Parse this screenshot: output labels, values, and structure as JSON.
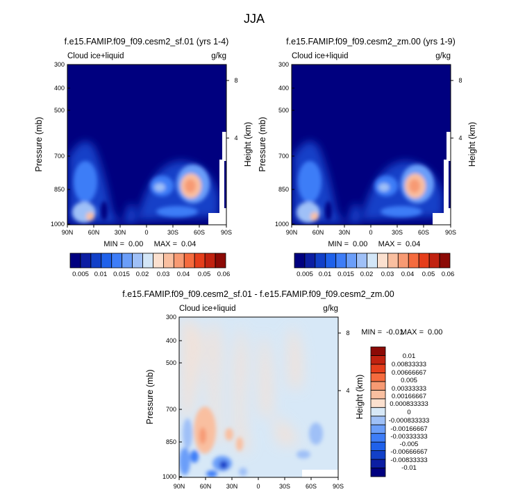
{
  "figure": {
    "title": "JJA"
  },
  "panels": [
    {
      "id": "a",
      "title": "f.e15.FAMIP.f09_f09.cesm2_sf.01 (yrs 1-4)",
      "left_label": "Cloud ice+liquid",
      "right_label": "g/kg",
      "stats": {
        "min_label": "MIN =",
        "min_value": "0.00",
        "max_label": "MAX =",
        "max_value": "0.04"
      }
    },
    {
      "id": "b",
      "title": "f.e15.FAMIP.f09_f09.cesm2_zm.00 (yrs 1-9)",
      "left_label": "Cloud ice+liquid",
      "right_label": "g/kg",
      "stats": {
        "min_label": "MIN =",
        "min_value": "0.00",
        "max_label": "MAX =",
        "max_value": "0.04"
      }
    },
    {
      "id": "diff",
      "title": "f.e15.FAMIP.f09_f09.cesm2_sf.01 - f.e15.FAMIP.f09_f09.cesm2_zm.00",
      "left_label": "Cloud ice+liquid",
      "right_label": "g/kg",
      "stats": {
        "min_label": "MIN =",
        "min_value": "-0.01",
        "max_label": "MAX =",
        "max_value": "0.00"
      }
    }
  ],
  "colors": {
    "abs_scale": [
      "#00007f",
      "#0c1ea2",
      "#1240c8",
      "#1f61ea",
      "#3e7df7",
      "#6b9ef9",
      "#9fc0f7",
      "#d3e6f7",
      "#fbe0cf",
      "#f9bfa0",
      "#f79a73",
      "#f56b3e",
      "#e53e1b",
      "#c12210",
      "#8c0a06"
    ],
    "diff_scale": [
      "#00007f",
      "#0c1ea2",
      "#1240c8",
      "#1f61ea",
      "#3e7df7",
      "#6b9ef9",
      "#9fc0f7",
      "#d7e8f7",
      "#fbe0cf",
      "#f9bfa0",
      "#f79a73",
      "#f56b3e",
      "#e53e1b",
      "#c12210",
      "#8c0a06"
    ],
    "missing": "#ffffff"
  },
  "chart_data": [
    {
      "type": "heatmap",
      "panel": "a",
      "title": "f.e15.FAMIP.f09_f09.cesm2_sf.01 (yrs 1-4)",
      "xlabel": "",
      "ylabel": "Pressure (mb)",
      "y2label": "Height (km)",
      "x_ticks": [
        "90N",
        "60N",
        "30N",
        "0",
        "30S",
        "60S",
        "90S"
      ],
      "y_ticks": [
        "300",
        "400",
        "500",
        "700",
        "850",
        "1000"
      ],
      "y2_ticks": [
        "8",
        "4"
      ],
      "x_range": [
        90,
        -90
      ],
      "y_range": [
        300,
        1000
      ],
      "colorbar_levels": [
        "0.005",
        "0.01",
        "0.015",
        "0.02",
        "0.03",
        "0.04",
        "0.05",
        "0.06"
      ],
      "features": [
        {
          "description": "low-level cloud maximum near 55S",
          "lat": -52,
          "p": 850,
          "value": 0.035
        },
        {
          "description": "Northern high-latitude boundary layer cloud",
          "lat": 67,
          "p": 950,
          "value": 0.025
        },
        {
          "description": "tropical/subtropical low cloud",
          "lat": 28,
          "p": 960,
          "value": 0.015
        }
      ]
    },
    {
      "type": "heatmap",
      "panel": "b",
      "title": "f.e15.FAMIP.f09_f09.cesm2_zm.00 (yrs 1-9)",
      "xlabel": "",
      "ylabel": "Pressure (mb)",
      "y2label": "Height (km)",
      "x_ticks": [
        "90N",
        "60N",
        "30N",
        "0",
        "30S",
        "60S",
        "90S"
      ],
      "y_ticks": [
        "300",
        "400",
        "500",
        "700",
        "850",
        "1000"
      ],
      "y2_ticks": [
        "8",
        "4"
      ],
      "x_range": [
        90,
        -90
      ],
      "y_range": [
        300,
        1000
      ],
      "colorbar_levels": [
        "0.005",
        "0.01",
        "0.015",
        "0.02",
        "0.03",
        "0.04",
        "0.05",
        "0.06"
      ],
      "features": [
        {
          "description": "low-level cloud maximum near 55S",
          "lat": -52,
          "p": 850,
          "value": 0.035
        },
        {
          "description": "Northern high-latitude boundary layer cloud",
          "lat": 67,
          "p": 950,
          "value": 0.025
        },
        {
          "description": "tropical/subtropical low cloud",
          "lat": 28,
          "p": 960,
          "value": 0.015
        }
      ]
    },
    {
      "type": "heatmap",
      "panel": "diff",
      "title": "f.e15.FAMIP.f09_f09.cesm2_sf.01 - f.e15.FAMIP.f09_f09.cesm2_zm.00",
      "xlabel": "",
      "ylabel": "Pressure (mb)",
      "y2label": "Height (km)",
      "x_ticks": [
        "90N",
        "60N",
        "30N",
        "0",
        "30S",
        "60S",
        "90S"
      ],
      "y_ticks": [
        "300",
        "400",
        "500",
        "700",
        "850",
        "1000"
      ],
      "y2_ticks": [
        "8",
        "4"
      ],
      "x_range": [
        90,
        -90
      ],
      "y_range": [
        300,
        1000
      ],
      "colorbar_levels": [
        "0.01",
        "0.00833333",
        "0.00666667",
        "0.005",
        "0.00333333",
        "0.00166667",
        "0.000833333",
        "0",
        "-0.000833333",
        "-0.00166667",
        "-0.00333333",
        "-0.005",
        "-0.00666667",
        "-0.00833333",
        "-0.01"
      ],
      "features": [
        {
          "description": "weak positive difference near 65N lower troposphere",
          "lat": 65,
          "p": 820,
          "value": 0.0012
        },
        {
          "description": "negative difference near 45N boundary layer",
          "lat": 45,
          "p": 930,
          "value": -0.004
        },
        {
          "description": "negative difference near 75N boundary layer",
          "lat": 75,
          "p": 900,
          "value": -0.003
        }
      ]
    }
  ]
}
